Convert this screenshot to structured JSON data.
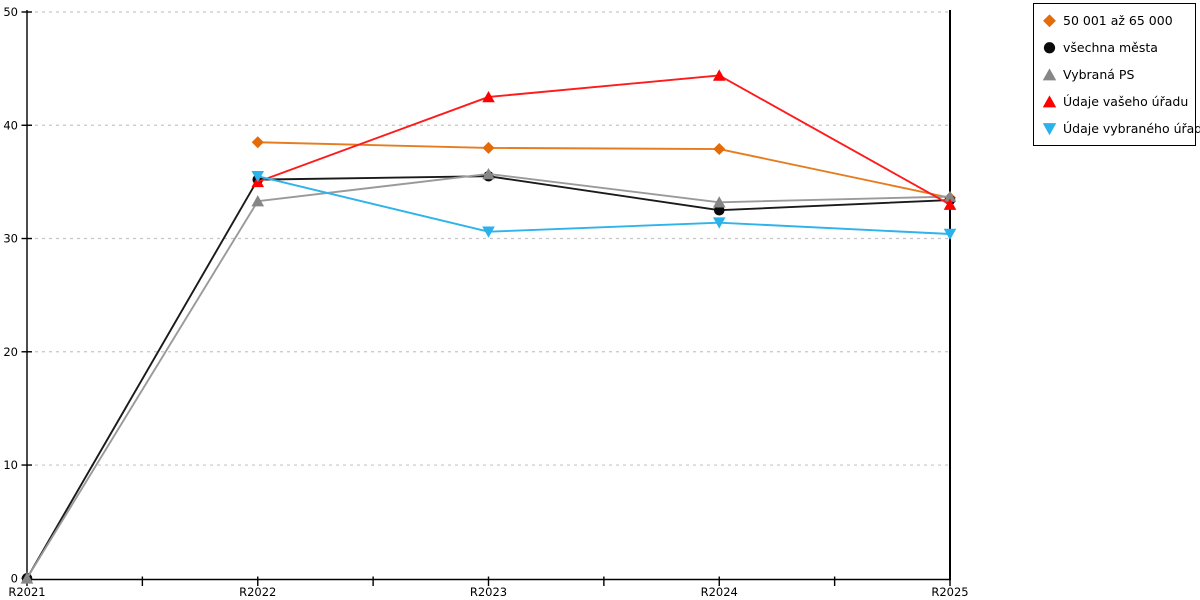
{
  "page": {
    "background": "#ffffff",
    "title": ""
  },
  "chart_data": {
    "type": "line",
    "categories": [
      "R2021",
      "R2022",
      "R2023",
      "R2024",
      "R2025"
    ],
    "series": [
      {
        "name": "50 001 až 65 000",
        "marker": "diamond",
        "color": "#e36c09",
        "line_color": "#e57d20",
        "values": [
          null,
          38.5,
          38.0,
          37.9,
          33.6
        ]
      },
      {
        "name": "všechna města",
        "marker": "circle",
        "color": "#0a0a0a",
        "line_color": "#1a1a1a",
        "values": [
          0,
          35.2,
          35.5,
          32.5,
          33.4
        ]
      },
      {
        "name": "Vybraná PS",
        "marker": "triangle-up",
        "color": "#868686",
        "line_color": "#9a9a9a",
        "values": [
          0,
          33.3,
          35.7,
          33.2,
          33.7
        ]
      },
      {
        "name": "Údaje vašeho úřadu",
        "marker": "triangle-up",
        "color": "#fe0000",
        "line_color": "#fe1b1b",
        "values": [
          null,
          35.0,
          42.5,
          44.4,
          33.0
        ]
      },
      {
        "name": "Údaje vybraného úřadu",
        "marker": "triangle-down",
        "color": "#29b2ec",
        "line_color": "#2eb3ea",
        "values": [
          null,
          35.5,
          30.6,
          31.4,
          30.4
        ]
      }
    ],
    "xlabel": "",
    "ylabel": "",
    "ylim": [
      0,
      50
    ],
    "ytick_step": 10,
    "yticks": [
      "0",
      "10",
      "20",
      "30",
      "40",
      "50"
    ],
    "grid": "horizontal-dashed",
    "grid_color": "#c6c6c6",
    "axis_color": "#000000",
    "legend_position": "top-right-outside",
    "x_minor_ticks_between_labels": 1
  }
}
